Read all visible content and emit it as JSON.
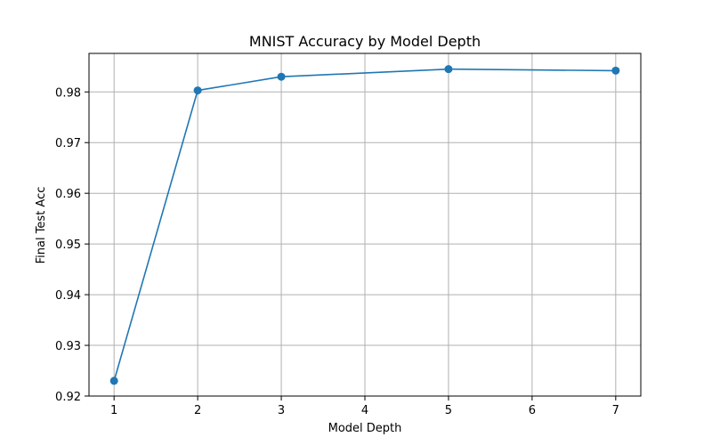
{
  "chart_data": {
    "type": "line",
    "title": "MNIST Accuracy by Model Depth",
    "xlabel": "Model Depth",
    "ylabel": "Final Test Acc",
    "x": [
      1,
      2,
      3,
      5,
      7
    ],
    "series": [
      {
        "values": [
          0.923,
          0.9803,
          0.983,
          0.9845,
          0.9842
        ],
        "color": "#1f77b4",
        "marker": "circle"
      }
    ],
    "xticks": [
      1,
      2,
      3,
      4,
      5,
      6,
      7
    ],
    "xtick_labels": [
      "1",
      "2",
      "3",
      "4",
      "5",
      "6",
      "7"
    ],
    "yticks": [
      0.92,
      0.93,
      0.94,
      0.95,
      0.96,
      0.97,
      0.98
    ],
    "ytick_labels": [
      "0.92",
      "0.93",
      "0.94",
      "0.95",
      "0.96",
      "0.97",
      "0.98"
    ],
    "xlim": [
      0.7,
      7.3
    ],
    "ylim": [
      0.92,
      0.9876
    ],
    "grid": true,
    "grid_color": "#b0b0b0",
    "legend": "none"
  }
}
